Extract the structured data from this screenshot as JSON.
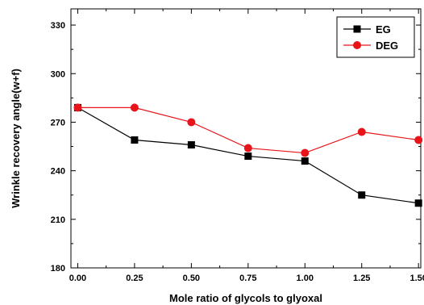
{
  "chart_data": {
    "type": "line",
    "xlabel": "Mole ratio of glycols to glyoxal",
    "ylabel": "Wrinkle recovery angle(w+f)",
    "xlim": [
      -0.03,
      1.51
    ],
    "ylim": [
      180,
      340
    ],
    "x_ticks": [
      "0.00",
      "0.25",
      "0.50",
      "0.75",
      "1.00",
      "1.25",
      "1.50"
    ],
    "y_ticks": [
      "180",
      "210",
      "240",
      "270",
      "300",
      "330"
    ],
    "grid": false,
    "legend_position": "top-right",
    "series": [
      {
        "name": "EG",
        "color": "#000000",
        "marker": "square",
        "x": [
          0.0,
          0.25,
          0.5,
          0.75,
          1.0,
          1.25,
          1.5
        ],
        "y": [
          279,
          259,
          256,
          249,
          246,
          225,
          220
        ]
      },
      {
        "name": "DEG",
        "color": "#e8141a",
        "marker": "circle",
        "x": [
          0.0,
          0.25,
          0.5,
          0.75,
          1.0,
          1.25,
          1.5
        ],
        "y": [
          279,
          279,
          270,
          254,
          251,
          264,
          259
        ]
      }
    ]
  }
}
